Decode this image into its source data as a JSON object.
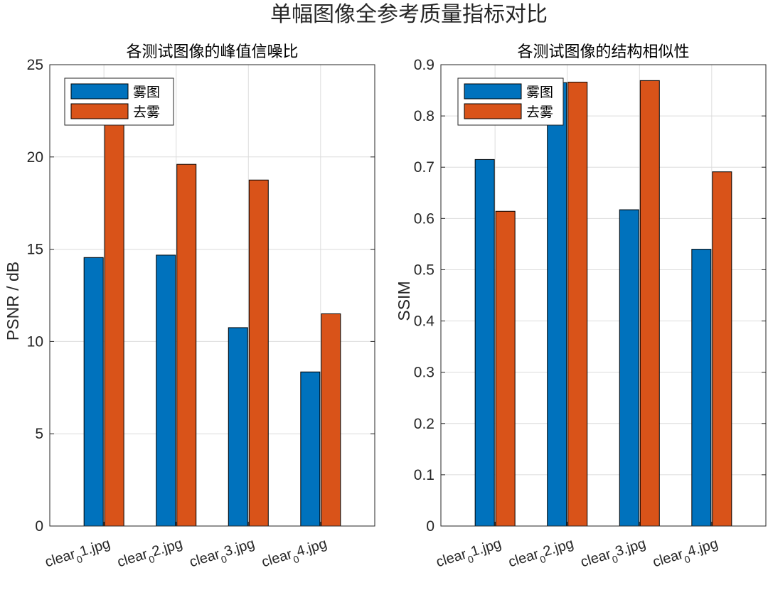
{
  "title": "单幅图像全参考质量指标对比",
  "chart_data": [
    {
      "type": "bar",
      "title": "各测试图像的峰值信噪比",
      "xlabel": "",
      "ylabel": "PSNR / dB",
      "ylim": [
        0,
        25
      ],
      "yticks": [
        "0",
        "5",
        "10",
        "15",
        "20",
        "25"
      ],
      "grid": true,
      "legend_position": "top-left",
      "categories": [
        "clear_0 1.jpg",
        "clear_0 2.jpg",
        "clear_0 3.jpg",
        "clear_0 4.jpg"
      ],
      "category_labels": [
        {
          "base": "clear",
          "sub": "0",
          "rest": "1.jpg"
        },
        {
          "base": "clear",
          "sub": "0",
          "rest": "2.jpg"
        },
        {
          "base": "clear",
          "sub": "0",
          "rest": "3.jpg"
        },
        {
          "base": "clear",
          "sub": "0",
          "rest": "4.jpg"
        }
      ],
      "series": [
        {
          "name": "雾图",
          "color": "#0072BD",
          "values": [
            14.55,
            14.68,
            10.75,
            8.35
          ]
        },
        {
          "name": "去雾",
          "color": "#D95319",
          "values": [
            21.75,
            19.6,
            18.75,
            11.5
          ]
        }
      ]
    },
    {
      "type": "bar",
      "title": "各测试图像的结构相似性",
      "xlabel": "",
      "ylabel": "SSIM",
      "ylim": [
        0,
        0.9
      ],
      "yticks": [
        "0",
        "0.1",
        "0.2",
        "0.3",
        "0.4",
        "0.5",
        "0.6",
        "0.7",
        "0.8",
        "0.9"
      ],
      "grid": true,
      "legend_position": "top-left",
      "categories": [
        "clear_0 1.jpg",
        "clear_0 2.jpg",
        "clear_0 3.jpg",
        "clear_0 4.jpg"
      ],
      "category_labels": [
        {
          "base": "clear",
          "sub": "0",
          "rest": "1.jpg"
        },
        {
          "base": "clear",
          "sub": "0",
          "rest": "2.jpg"
        },
        {
          "base": "clear",
          "sub": "0",
          "rest": "3.jpg"
        },
        {
          "base": "clear",
          "sub": "0",
          "rest": "4.jpg"
        }
      ],
      "series": [
        {
          "name": "雾图",
          "color": "#0072BD",
          "values": [
            0.715,
            0.865,
            0.617,
            0.54
          ]
        },
        {
          "name": "去雾",
          "color": "#D95319",
          "values": [
            0.614,
            0.866,
            0.869,
            0.691
          ]
        }
      ]
    }
  ]
}
